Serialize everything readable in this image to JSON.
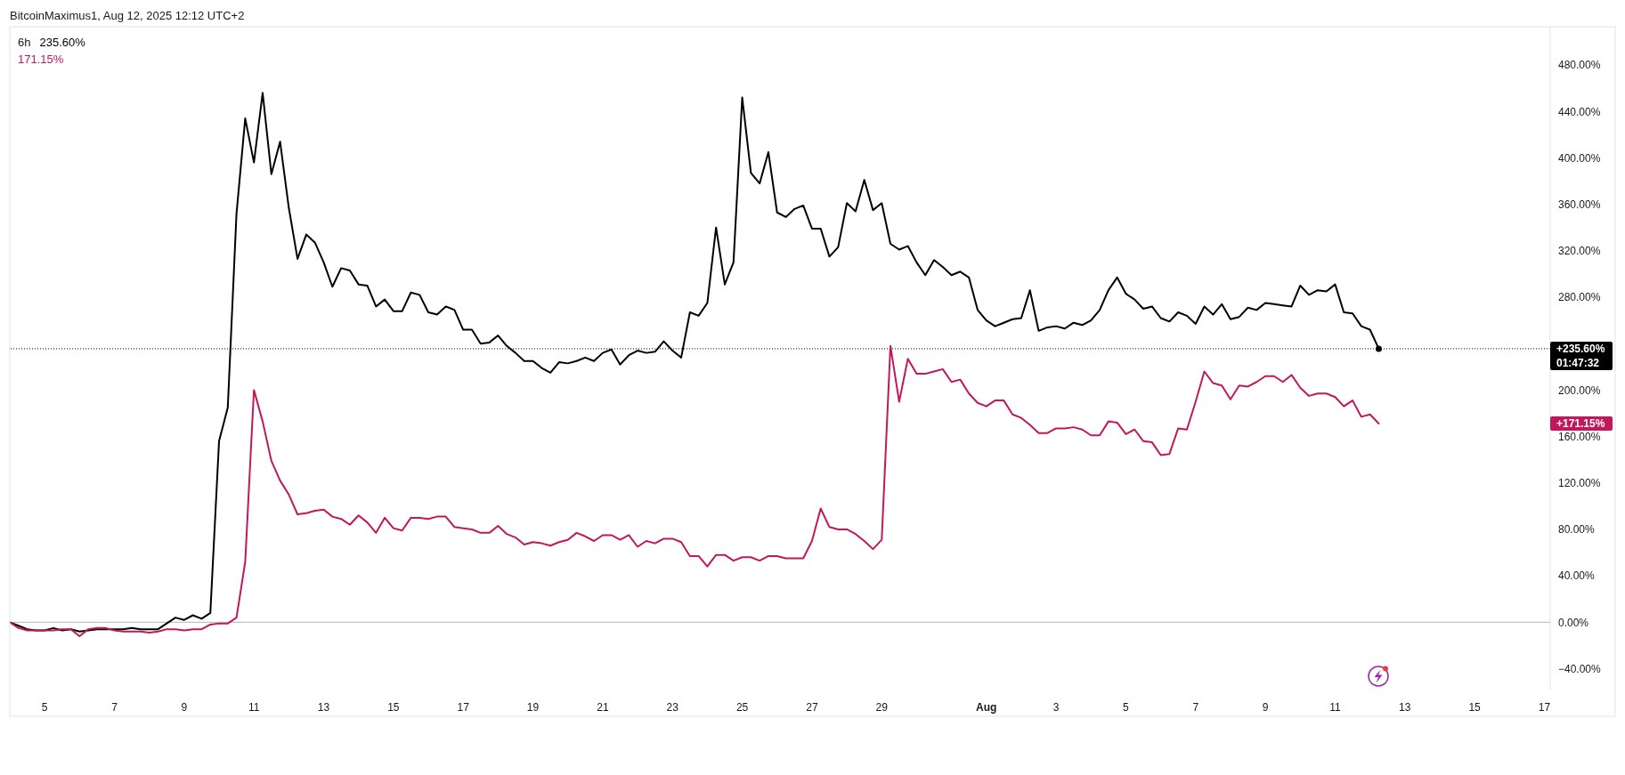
{
  "chart_data": {
    "type": "line",
    "annotations": [
      "BitcoinMaximus1, Aug 12, 2025 12:12 UTC+2",
      "6h",
      "235.60%",
      "171.15%",
      "01:47:32",
      "+171.15%"
    ],
    "x": [
      "2025-07-04T00:00",
      "2025-07-04T06:00",
      "2025-07-04T12:00",
      "2025-07-04T18:00",
      "2025-07-05T00:00",
      "2025-07-05T06:00",
      "2025-07-05T12:00",
      "2025-07-05T18:00",
      "2025-07-06T00:00",
      "2025-07-06T06:00",
      "2025-07-06T12:00",
      "2025-07-06T18:00",
      "2025-07-07T00:00",
      "2025-07-07T06:00",
      "2025-07-07T12:00",
      "2025-07-07T18:00",
      "2025-07-08T00:00",
      "2025-07-08T06:00",
      "2025-07-08T12:00",
      "2025-07-08T18:00",
      "2025-07-09T00:00",
      "2025-07-09T06:00",
      "2025-07-09T12:00",
      "2025-07-09T18:00",
      "2025-07-10T00:00",
      "2025-07-10T06:00",
      "2025-07-10T12:00",
      "2025-07-10T18:00",
      "2025-07-11T00:00",
      "2025-07-11T06:00",
      "2025-07-11T12:00",
      "2025-07-11T18:00",
      "2025-07-12T00:00",
      "2025-07-12T06:00",
      "2025-07-12T12:00",
      "2025-07-12T18:00",
      "2025-07-13T00:00",
      "2025-07-13T06:00",
      "2025-07-13T12:00",
      "2025-07-13T18:00",
      "2025-07-14T00:00",
      "2025-07-14T06:00",
      "2025-07-14T12:00",
      "2025-07-14T18:00",
      "2025-07-15T00:00",
      "2025-07-15T06:00",
      "2025-07-15T12:00",
      "2025-07-15T18:00",
      "2025-07-16T00:00",
      "2025-07-16T06:00",
      "2025-07-16T12:00",
      "2025-07-16T18:00",
      "2025-07-17T00:00",
      "2025-07-17T06:00",
      "2025-07-17T12:00",
      "2025-07-17T18:00",
      "2025-07-18T00:00",
      "2025-07-18T06:00",
      "2025-07-18T12:00",
      "2025-07-18T18:00",
      "2025-07-19T00:00",
      "2025-07-19T06:00",
      "2025-07-19T12:00",
      "2025-07-19T18:00",
      "2025-07-20T00:00",
      "2025-07-20T06:00",
      "2025-07-20T12:00",
      "2025-07-20T18:00",
      "2025-07-21T00:00",
      "2025-07-21T06:00",
      "2025-07-21T12:00",
      "2025-07-21T18:00",
      "2025-07-22T00:00",
      "2025-07-22T06:00",
      "2025-07-22T12:00",
      "2025-07-22T18:00",
      "2025-07-23T00:00",
      "2025-07-23T06:00",
      "2025-07-23T12:00",
      "2025-07-23T18:00",
      "2025-07-24T00:00",
      "2025-07-24T06:00",
      "2025-07-24T12:00",
      "2025-07-24T18:00",
      "2025-07-25T00:00",
      "2025-07-25T06:00",
      "2025-07-25T12:00",
      "2025-07-25T18:00",
      "2025-07-26T00:00",
      "2025-07-26T06:00",
      "2025-07-26T12:00",
      "2025-07-26T18:00",
      "2025-07-27T00:00",
      "2025-07-27T06:00",
      "2025-07-27T12:00",
      "2025-07-27T18:00",
      "2025-07-28T00:00",
      "2025-07-28T06:00",
      "2025-07-28T12:00",
      "2025-07-28T18:00",
      "2025-07-29T00:00",
      "2025-07-29T06:00",
      "2025-07-29T12:00",
      "2025-07-29T18:00",
      "2025-07-30T00:00",
      "2025-07-30T06:00",
      "2025-07-30T12:00",
      "2025-07-30T18:00",
      "2025-07-31T00:00",
      "2025-07-31T06:00",
      "2025-07-31T12:00",
      "2025-07-31T18:00",
      "2025-08-01T00:00",
      "2025-08-01T06:00",
      "2025-08-01T12:00",
      "2025-08-01T18:00",
      "2025-08-02T00:00",
      "2025-08-02T06:00",
      "2025-08-02T12:00",
      "2025-08-02T18:00",
      "2025-08-03T00:00",
      "2025-08-03T06:00",
      "2025-08-03T12:00",
      "2025-08-03T18:00",
      "2025-08-04T00:00",
      "2025-08-04T06:00",
      "2025-08-04T12:00",
      "2025-08-04T18:00",
      "2025-08-05T00:00",
      "2025-08-05T06:00",
      "2025-08-05T12:00",
      "2025-08-05T18:00",
      "2025-08-06T00:00",
      "2025-08-06T06:00",
      "2025-08-06T12:00",
      "2025-08-06T18:00",
      "2025-08-07T00:00",
      "2025-08-07T06:00",
      "2025-08-07T12:00",
      "2025-08-07T18:00",
      "2025-08-08T00:00",
      "2025-08-08T06:00",
      "2025-08-08T12:00",
      "2025-08-08T18:00",
      "2025-08-09T00:00",
      "2025-08-09T06:00",
      "2025-08-09T12:00",
      "2025-08-09T18:00",
      "2025-08-10T00:00",
      "2025-08-10T06:00",
      "2025-08-10T12:00",
      "2025-08-10T18:00",
      "2025-08-11T00:00",
      "2025-08-11T06:00",
      "2025-08-11T12:00",
      "2025-08-11T18:00",
      "2025-08-12T00:00",
      "2025-08-12T06:00"
    ],
    "series": [
      {
        "color": "#000000",
        "values": [
          0,
          -3,
          -6,
          -7,
          -7,
          -5,
          -7,
          -6,
          -8,
          -7,
          -6,
          -6,
          -6,
          -6,
          -5,
          -6,
          -6,
          -6,
          -1,
          4,
          2,
          6,
          3,
          8,
          156,
          185,
          352,
          434,
          396,
          456,
          386,
          414,
          357,
          313,
          334,
          327,
          310,
          289,
          305,
          303,
          291,
          290,
          272,
          278,
          268,
          268,
          284,
          282,
          267,
          265,
          272,
          269,
          252,
          252,
          240,
          241,
          247,
          238,
          232,
          225,
          225,
          219,
          215,
          224,
          223,
          225,
          228,
          225,
          232,
          235,
          222,
          230,
          234,
          232,
          233,
          242,
          234,
          228,
          267,
          264,
          275,
          340,
          291,
          310,
          452,
          387,
          378,
          405,
          353,
          349,
          356,
          359,
          339,
          339,
          315,
          323,
          361,
          354,
          381,
          355,
          361,
          326,
          321,
          324,
          310,
          299,
          312,
          306,
          299,
          302,
          297,
          269,
          260,
          255,
          258,
          261,
          262,
          286,
          251,
          254,
          255,
          253,
          258,
          256,
          260,
          269,
          286,
          297,
          283,
          278,
          270,
          272,
          262,
          259,
          267,
          264,
          257,
          272,
          265,
          274,
          261,
          263,
          271,
          269,
          275,
          274,
          273,
          272,
          290,
          282,
          286,
          285,
          291,
          267,
          266,
          255,
          252,
          235.6
        ]
      },
      {
        "color": "#c2185b",
        "values": [
          0,
          -5,
          -7,
          -7,
          -7,
          -7,
          -6,
          -6,
          -12,
          -6,
          -5,
          -5,
          -7,
          -8,
          -8,
          -8,
          -9,
          -8,
          -6,
          -6,
          -7,
          -6,
          -6,
          -2,
          -1,
          -1,
          4,
          52,
          200,
          173,
          139,
          122,
          110,
          93,
          94,
          96,
          97,
          91,
          89,
          84,
          92,
          86,
          77,
          90,
          81,
          79,
          90,
          90,
          89,
          91,
          91,
          82,
          81,
          80,
          77,
          77,
          83,
          76,
          73,
          67,
          69,
          68,
          66,
          69,
          71,
          77,
          74,
          70,
          75,
          75,
          71,
          75,
          65,
          70,
          68,
          72,
          72,
          69,
          57,
          57,
          48,
          58,
          58,
          53,
          56,
          56,
          53,
          57,
          57,
          55,
          55,
          55,
          70,
          98,
          82,
          80,
          80,
          76,
          70,
          63,
          71,
          238,
          190,
          227,
          214,
          214,
          216,
          218,
          207,
          209,
          197,
          189,
          186,
          191,
          191,
          179,
          176,
          170,
          163,
          163,
          167,
          167,
          168,
          166,
          161,
          161,
          173,
          172,
          162,
          166,
          156,
          155,
          144,
          145,
          167,
          166,
          190,
          216,
          206,
          204,
          192,
          204,
          203,
          207,
          212,
          212,
          207,
          213,
          202,
          195,
          197,
          197,
          194,
          186,
          191,
          177,
          179,
          171.15
        ]
      },
      {
        "type": "scatter",
        "x": [
          "2025-08-12T06:00"
        ],
        "color": "#000000",
        "marker": "circle",
        "values": [
          235.6
        ]
      }
    ],
    "xlim": [
      "2025-07-04T00:00",
      "2025-08-17T04:00"
    ],
    "xticks": [
      {
        "value": "2025-07-05",
        "label": "5"
      },
      {
        "value": "2025-07-07",
        "label": "7"
      },
      {
        "value": "2025-07-09",
        "label": "9"
      },
      {
        "value": "2025-07-11",
        "label": "11"
      },
      {
        "value": "2025-07-13",
        "label": "13"
      },
      {
        "value": "2025-07-15",
        "label": "15"
      },
      {
        "value": "2025-07-17",
        "label": "17"
      },
      {
        "value": "2025-07-19",
        "label": "19"
      },
      {
        "value": "2025-07-21",
        "label": "21"
      },
      {
        "value": "2025-07-23",
        "label": "23"
      },
      {
        "value": "2025-07-25",
        "label": "25"
      },
      {
        "value": "2025-07-27",
        "label": "27"
      },
      {
        "value": "2025-07-29",
        "label": "29"
      },
      {
        "value": "2025-08-01",
        "label": "Aug"
      },
      {
        "value": "2025-08-03",
        "label": "3"
      },
      {
        "value": "2025-08-05",
        "label": "5"
      },
      {
        "value": "2025-08-07",
        "label": "7"
      },
      {
        "value": "2025-08-09",
        "label": "9"
      },
      {
        "value": "2025-08-11",
        "label": "11"
      },
      {
        "value": "2025-08-13",
        "label": "13"
      },
      {
        "value": "2025-08-15",
        "label": "15"
      },
      {
        "value": "2025-08-17",
        "label": "17"
      }
    ],
    "ylim": [
      -58,
      513
    ],
    "yticks": [
      {
        "value": -40,
        "label": "−40.00%"
      },
      {
        "value": 0,
        "label": "0.00%"
      },
      {
        "value": 40,
        "label": "40.00%"
      },
      {
        "value": 80,
        "label": "80.00%"
      },
      {
        "value": 120,
        "label": "120.00%"
      },
      {
        "value": 160,
        "label": "160.00%"
      },
      {
        "value": 200,
        "label": "200.00%"
      },
      {
        "value": 280,
        "label": "280.00%"
      },
      {
        "value": 320,
        "label": "320.00%"
      },
      {
        "value": 360,
        "label": "360.00%"
      },
      {
        "value": 400,
        "label": "400.00%"
      },
      {
        "value": 440,
        "label": "440.00%"
      },
      {
        "value": 480,
        "label": "480.00%"
      }
    ],
    "ref_lines": [
      {
        "axis": "y",
        "value": 0,
        "color": "#b2b5be"
      },
      {
        "axis": "y",
        "value": 235.6,
        "label": "+235.60%",
        "color": "#000000",
        "line_style": "dotted"
      }
    ]
  }
}
